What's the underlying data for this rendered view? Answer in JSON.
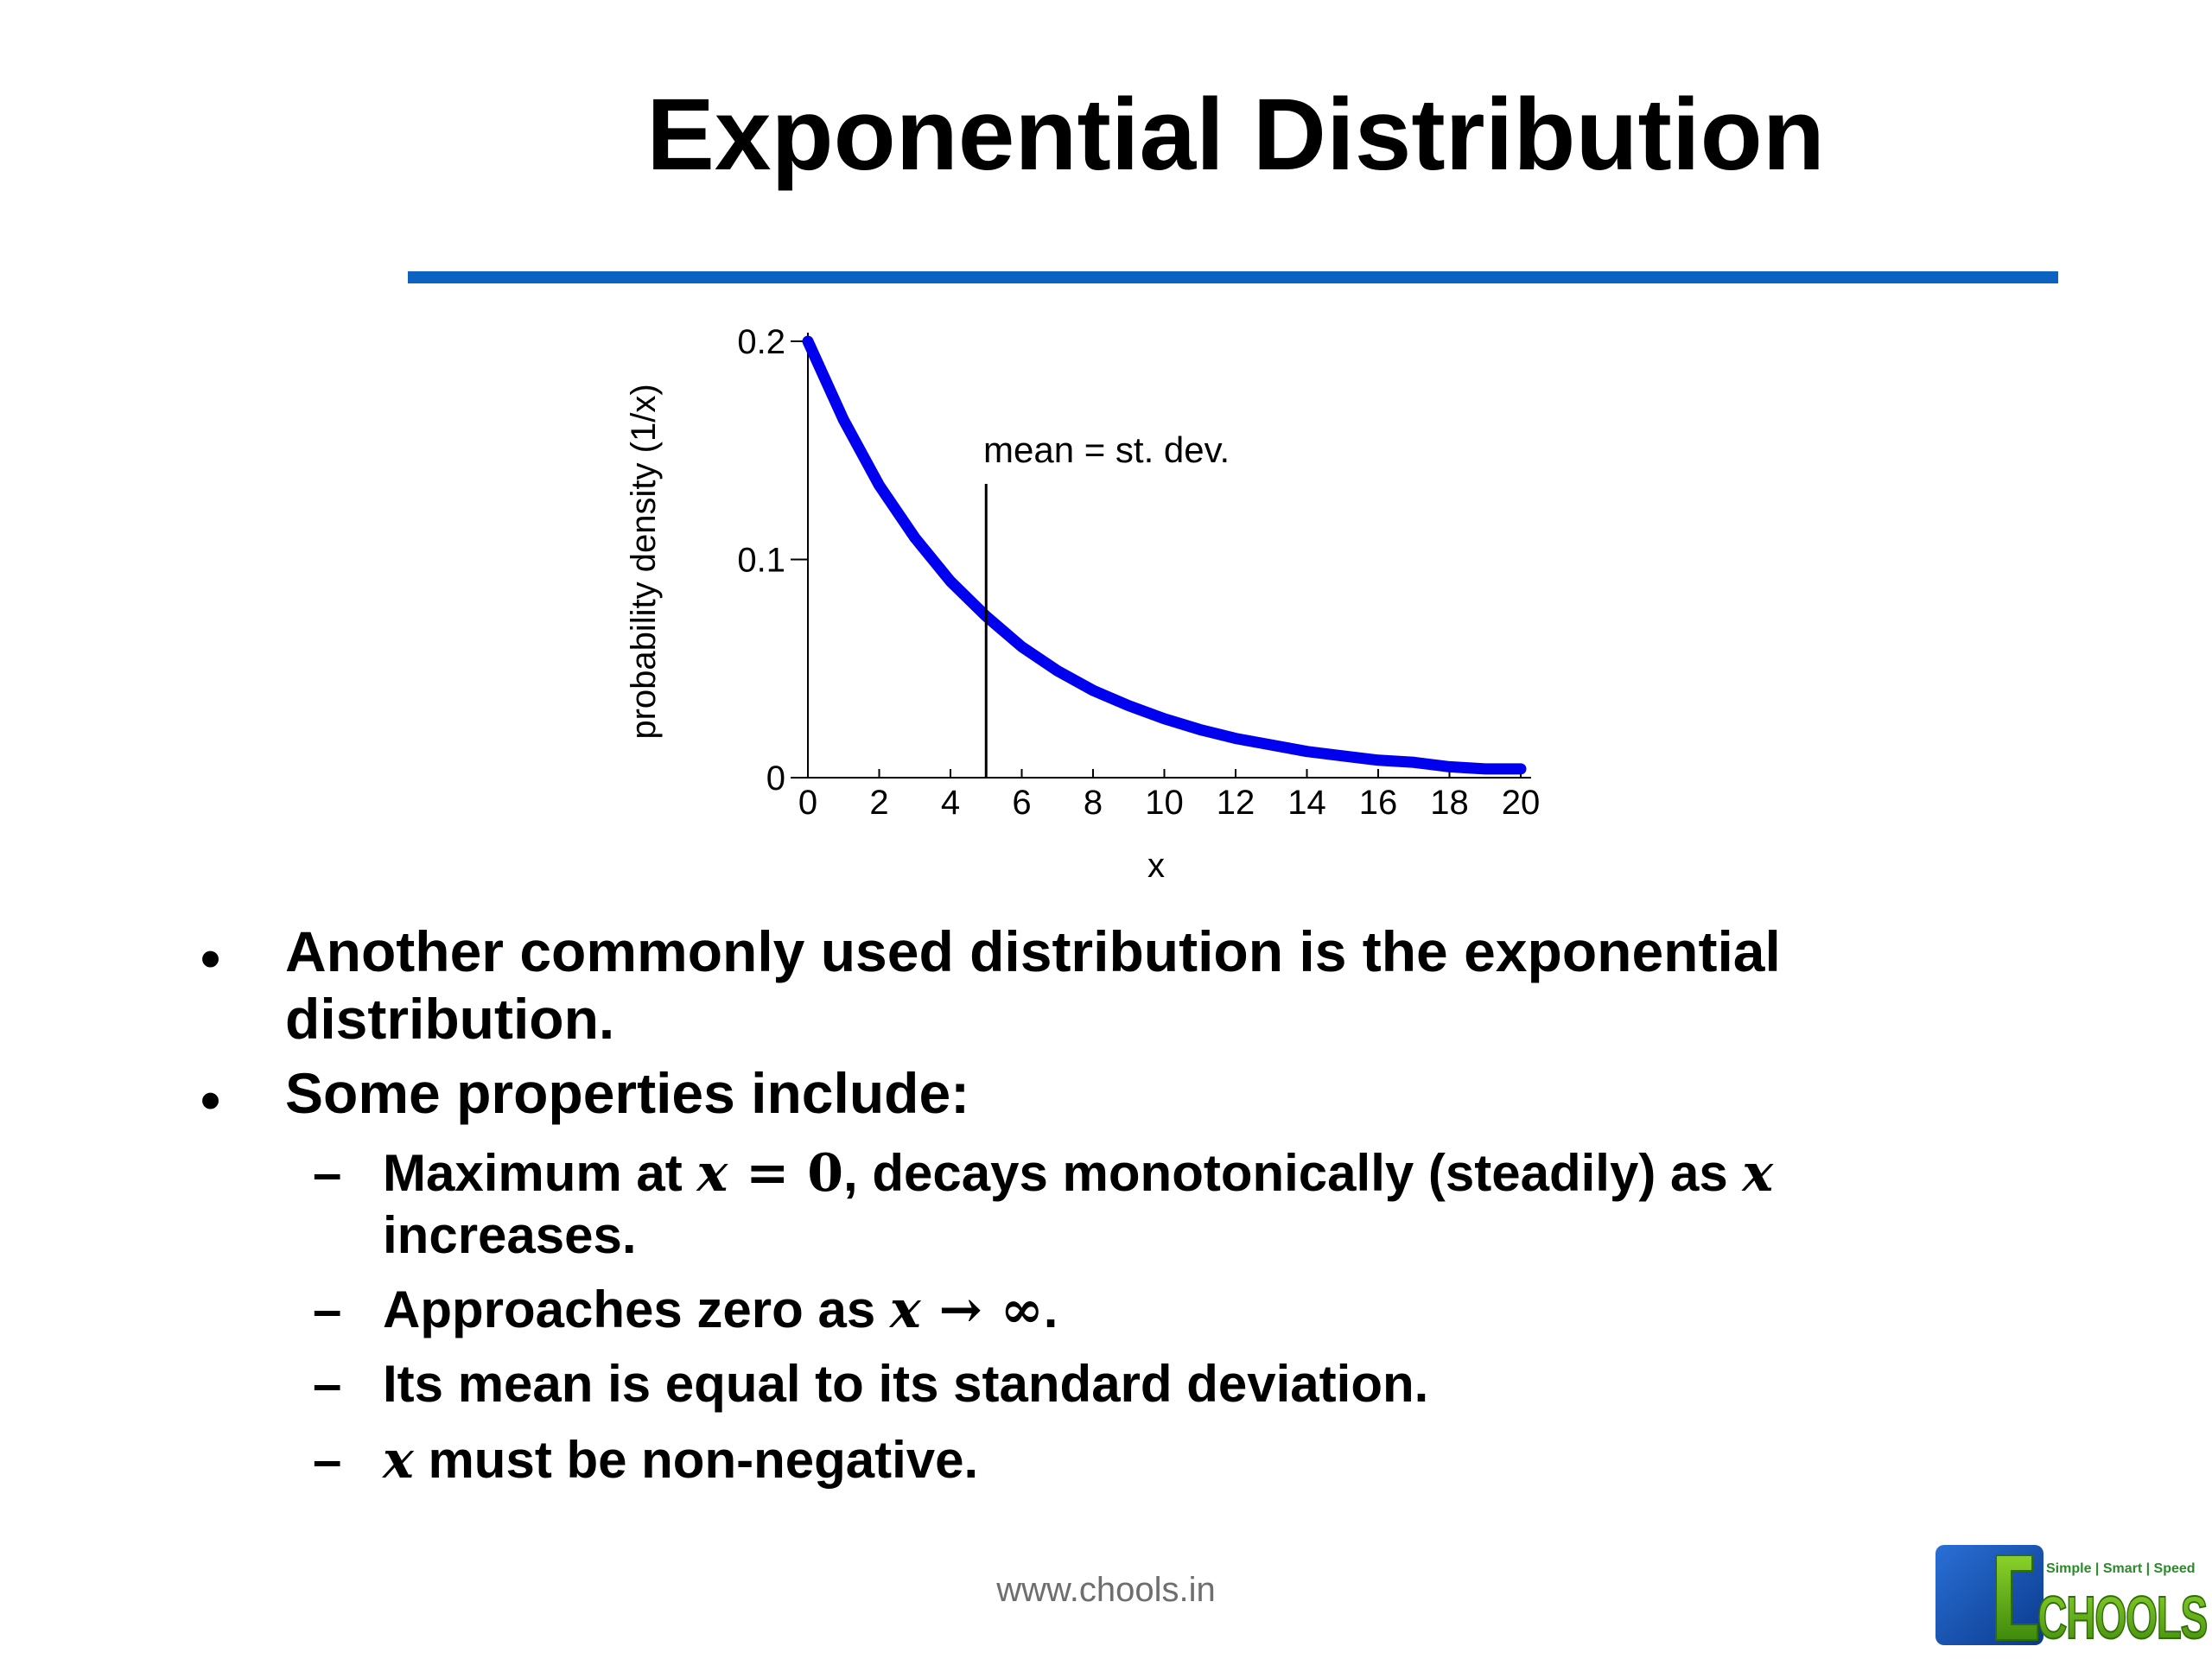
{
  "slide": {
    "title": "Exponential Distribution",
    "bullets": [
      {
        "text": "Another commonly used distribution is the exponential distribution.",
        "line1": "Another commonly used distribution is the exponential",
        "line2": "distribution."
      },
      {
        "text": "Some properties include:"
      }
    ],
    "sub_bullets": [
      {
        "pre": "Maximum at ",
        "math1": "x",
        "mid1": " = 0",
        "post": ", decays monotonically (steadily) as ",
        "math2": "x",
        "line2": "increases."
      },
      {
        "pre": "Approaches zero as ",
        "math1": "x",
        "mid1": " → ∞",
        "post": "."
      },
      {
        "text": "Its mean is equal to its standard deviation."
      },
      {
        "math1": "x",
        "post": " must be non-negative."
      }
    ],
    "dash": "–",
    "bullet_glyph": "•",
    "footer_url": "www.chools.in",
    "logo": {
      "tagline": "Simple | Smart | Speed",
      "wordmark": "CHOOLS"
    }
  },
  "colors": {
    "curve": "#0000ee",
    "rule": "#0b62c0",
    "axis": "#000000"
  },
  "chart_data": {
    "type": "line",
    "xlabel": "x",
    "ylabel": "probability density (1/x)",
    "xlim": [
      0,
      20
    ],
    "ylim": [
      0,
      0.2
    ],
    "xticks": [
      0,
      2,
      4,
      6,
      8,
      10,
      12,
      14,
      16,
      18,
      20
    ],
    "yticks": [
      0,
      0.1,
      0.2
    ],
    "ytick_labels": [
      "0",
      "0.1",
      "0.2"
    ],
    "series": [
      {
        "x": [
          0,
          1,
          2,
          3,
          4,
          5,
          6,
          7,
          8,
          9,
          10,
          11,
          12,
          13,
          14,
          15,
          16,
          17,
          18,
          19,
          20
        ],
        "values": [
          0.2,
          0.164,
          0.134,
          0.11,
          0.09,
          0.074,
          0.06,
          0.049,
          0.04,
          0.033,
          0.027,
          0.022,
          0.018,
          0.015,
          0.012,
          0.01,
          0.008,
          0.007,
          0.005,
          0.004,
          0.004
        ]
      }
    ],
    "annotations": [
      {
        "text": "mean = st. dev.",
        "x": 5
      }
    ],
    "grid": false,
    "legend": "none"
  }
}
